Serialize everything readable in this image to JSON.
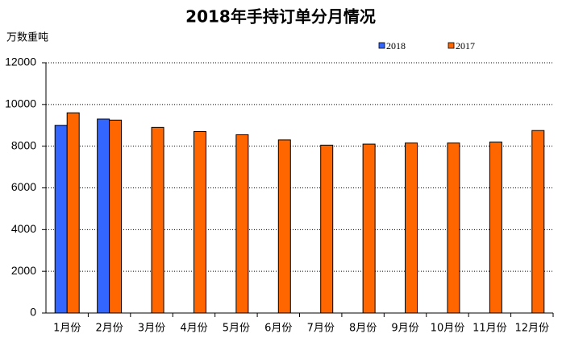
{
  "chart_data": {
    "type": "bar",
    "title": "2018年手持订单分月情况",
    "y_axis_label": "万数重吨",
    "categories": [
      "1月份",
      "2月份",
      "3月份",
      "4月份",
      "5月份",
      "6月份",
      "7月份",
      "8月份",
      "9月份",
      "10月份",
      "11月份",
      "12月份"
    ],
    "series": [
      {
        "name": "2018",
        "color": "#3366ff",
        "values": [
          9000,
          9300,
          null,
          null,
          null,
          null,
          null,
          null,
          null,
          null,
          null,
          null
        ]
      },
      {
        "name": "2017",
        "color": "#ff6600",
        "values": [
          9600,
          9250,
          8900,
          8700,
          8550,
          8300,
          8050,
          8100,
          8150,
          8150,
          8200,
          8750
        ]
      }
    ],
    "ylim": [
      0,
      12000
    ],
    "yticks": [
      0,
      2000,
      4000,
      6000,
      8000,
      10000,
      12000
    ],
    "grid": true,
    "legend": "top-right"
  }
}
